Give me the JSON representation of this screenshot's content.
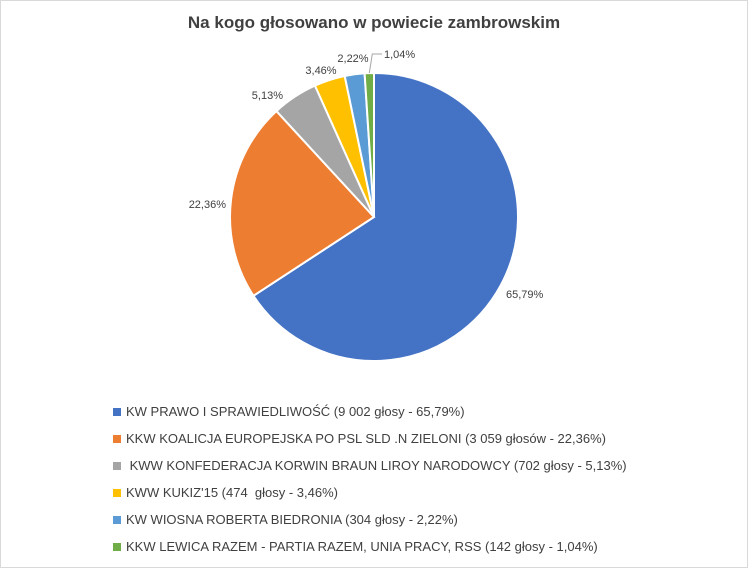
{
  "chart_data": {
    "type": "pie",
    "title": "Na kogo głosowano w powiecie zambrowskim",
    "slices": [
      {
        "label": "KW PRAWO I SPRAWIEDLIWOŚĆ (9 002 głosy - 65,79%)",
        "value": 65.79,
        "data_label": "65,79%",
        "color": "#4472C4"
      },
      {
        "label": "KKW KOALICJA EUROPEJSKA PO PSL SLD .N ZIELONI (3 059 głosów - 22,36%)",
        "value": 22.36,
        "data_label": "22,36%",
        "color": "#ED7D31"
      },
      {
        "label": " KWW KONFEDERACJA KORWIN BRAUN LIROY NARODOWCY (702 głosy - 5,13%)",
        "value": 5.13,
        "data_label": "5,13%",
        "color": "#A5A5A5"
      },
      {
        "label": "KWW KUKIZ'15 (474  głosy - 3,46%)",
        "value": 3.46,
        "data_label": "3,46%",
        "color": "#FFC000"
      },
      {
        "label": "KW WIOSNA ROBERTA BIEDRONIA (304 głosy - 2,22%)",
        "value": 2.22,
        "data_label": "2,22%",
        "color": "#5B9BD5"
      },
      {
        "label": "KKW LEWICA RAZEM - PARTIA RAZEM, UNIA PRACY, RSS (142 głosy - 1,04%)",
        "value": 1.04,
        "data_label": "1,04%",
        "color": "#70AD47"
      }
    ],
    "start_angle": "12 o'clock, clockwise",
    "legend_position": "bottom-left"
  }
}
